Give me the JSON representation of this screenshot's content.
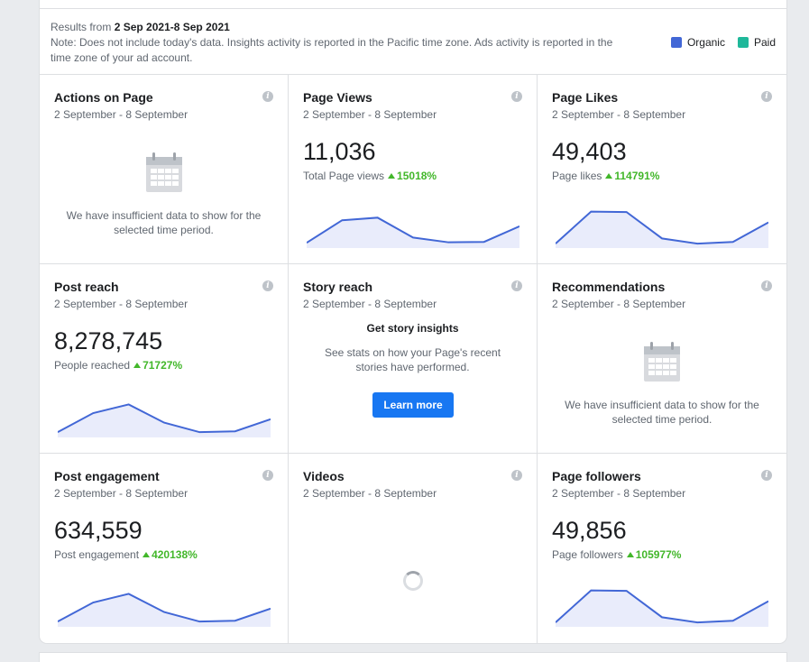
{
  "header": {
    "results_prefix": "Results from",
    "results_range": "2 Sep 2021-8 Sep 2021",
    "note": "Note: Does not include today's data. Insights activity is reported in the Pacific time zone. Ads activity is reported in the time zone of your ad account.",
    "legend": [
      {
        "label": "Organic",
        "color": "#4267d6"
      },
      {
        "label": "Paid",
        "color": "#1fb89a"
      }
    ]
  },
  "date_range": "2 September - 8 September",
  "insufficient_text": "We have insufficient data to show for the selected time period.",
  "cards": {
    "actions_on_page": {
      "title": "Actions on Page"
    },
    "page_views": {
      "title": "Page Views",
      "value": "11,036",
      "sub_label": "Total Page views",
      "change": "15018%",
      "spark": [
        8,
        60,
        66,
        20,
        9,
        10,
        46
      ]
    },
    "page_likes": {
      "title": "Page Likes",
      "value": "49,403",
      "sub_label": "Page likes",
      "change": "114791%",
      "spark": [
        6,
        80,
        79,
        18,
        6,
        10,
        55
      ]
    },
    "post_reach": {
      "title": "Post reach",
      "value": "8,278,745",
      "sub_label": "People reached",
      "change": "71727%",
      "spark": [
        8,
        52,
        72,
        30,
        8,
        10,
        38
      ]
    },
    "story_reach": {
      "title": "Story reach",
      "heading": "Get story insights",
      "text": "See stats on how your Page's recent stories have performed.",
      "button": "Learn more"
    },
    "recommendations": {
      "title": "Recommendations"
    },
    "post_engagement": {
      "title": "Post engagement",
      "value": "634,559",
      "sub_label": "Post engagement",
      "change": "420138%",
      "spark": [
        8,
        52,
        72,
        30,
        8,
        10,
        38
      ]
    },
    "videos": {
      "title": "Videos"
    },
    "page_followers": {
      "title": "Page followers",
      "value": "49,856",
      "sub_label": "Page followers",
      "change": "105977%",
      "spark": [
        6,
        80,
        79,
        18,
        6,
        10,
        55
      ]
    }
  },
  "colors": {
    "spark_line": "#4267d6",
    "spark_fill": "#e9ecfb",
    "positive": "#42b72a",
    "button": "#1877f2"
  }
}
